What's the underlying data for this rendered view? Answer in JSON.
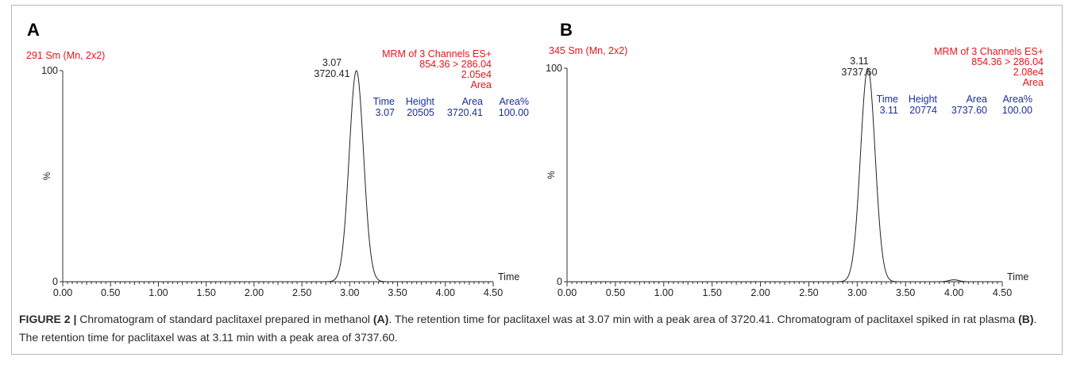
{
  "chart_data": [
    {
      "type": "line",
      "panel_label": "A",
      "header_left": "291 Sm (Mn, 2x2)",
      "header_right": [
        "MRM of 3 Channels ES+",
        "854.36 > 286.04",
        "2.05e4",
        "Area"
      ],
      "ylabel": "%",
      "xlabel": "Time",
      "xlim": [
        0,
        4.5
      ],
      "ylim": [
        0,
        100
      ],
      "x_ticks": [
        "0.00",
        "0.50",
        "1.00",
        "1.50",
        "2.00",
        "2.50",
        "3.00",
        "3.50",
        "4.00",
        "4.50"
      ],
      "y_ticks": [
        "0",
        "100"
      ],
      "peak": {
        "x": 3.07,
        "y": 100,
        "rt_label": "3.07",
        "area_label": "3720.41",
        "sigma": 0.075
      },
      "peak_table": {
        "headers": [
          "Time",
          "Height",
          "Area",
          "Area%"
        ],
        "row": [
          "3.07",
          "20505",
          "3720.41",
          "100.00"
        ]
      },
      "series": [
        {
          "x": [
            0.0,
            2.8,
            2.9,
            2.95,
            3.0,
            3.04,
            3.07,
            3.1,
            3.14,
            3.2,
            3.25,
            3.35,
            4.5
          ],
          "y": [
            0,
            0,
            3,
            17,
            58,
            92,
            100,
            92,
            58,
            17,
            5,
            0,
            0
          ]
        }
      ]
    },
    {
      "type": "line",
      "panel_label": "B",
      "header_left": "345 Sm (Mn, 2x2)",
      "header_right": [
        "MRM of 3 Channels ES+",
        "854.36 > 286.04",
        "2.08e4",
        "Area"
      ],
      "ylabel": "%",
      "xlabel": "Time",
      "xlim": [
        0,
        4.5
      ],
      "ylim": [
        0,
        100
      ],
      "x_ticks": [
        "0.00",
        "0.50",
        "1.00",
        "1.50",
        "2.00",
        "2.50",
        "3.00",
        "3.50",
        "4.00",
        "4.50"
      ],
      "y_ticks": [
        "0",
        "100"
      ],
      "peak": {
        "x": 3.11,
        "y": 100,
        "rt_label": "3.11",
        "area_label": "3737.60",
        "sigma": 0.075
      },
      "peak_table": {
        "headers": [
          "Time",
          "Height",
          "Area",
          "Area%"
        ],
        "row": [
          "3.11",
          "20774",
          "3737.60",
          "100.00"
        ]
      },
      "series": [
        {
          "x": [
            0.0,
            2.84,
            2.94,
            2.99,
            3.04,
            3.08,
            3.11,
            3.14,
            3.18,
            3.24,
            3.29,
            3.39,
            3.9,
            3.95,
            4.0,
            4.05,
            4.1,
            4.5
          ],
          "y": [
            0,
            0,
            3,
            17,
            58,
            92,
            100,
            92,
            58,
            17,
            5,
            0,
            0,
            1,
            1,
            1,
            0,
            0
          ]
        }
      ]
    }
  ],
  "caption": {
    "label": "FIGURE 2 |",
    "part1": " Chromatogram of standard paclitaxel prepared in methanol ",
    "ref1": "(A)",
    "part2": ". The retention time for paclitaxel was at 3.07 min with a peak area of 3720.41. Chromatogram of paclitaxel spiked in rat plasma ",
    "ref2": "(B)",
    "part3": ". The retention time for paclitaxel was at 3.11 min with a peak area of 3737.60."
  }
}
